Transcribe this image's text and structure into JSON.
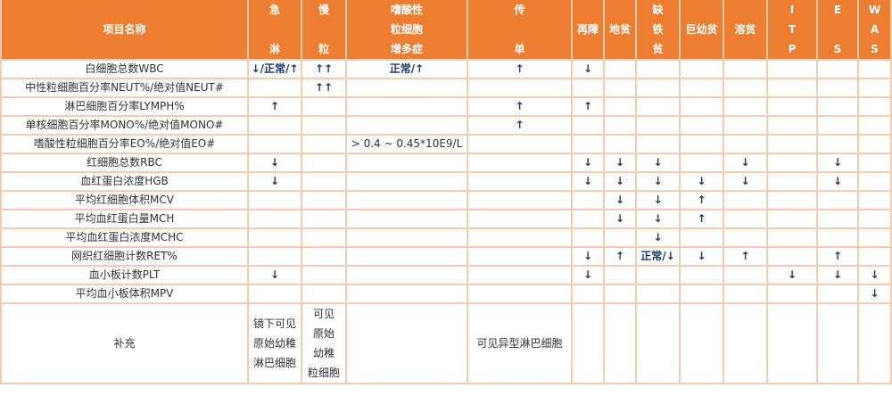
{
  "colors": {
    "header_bg": "#ed7d31",
    "border": "#f8cbad",
    "header_text": "#ffffff",
    "arrow": "#1f3864"
  },
  "headers": [
    "项目名称",
    "急\n\n淋",
    "慢\n\n粒",
    "嗜酸性\n粒细胞\n增多症",
    "传\n\n单",
    "再障",
    "地贫",
    "缺\n铁\n贫",
    "巨幼贫",
    "溶贫",
    "I\nT\nP",
    "E\n\nS",
    "W\nA\nS"
  ],
  "rows": [
    [
      "白细胞总数WBC",
      "↓/正常/↑",
      "↑↑",
      "正常/↑",
      "↑",
      "↓",
      "",
      "",
      "",
      "",
      "",
      "",
      ""
    ],
    [
      "中性粒细胞百分率NEUT%/绝对值NEUT#",
      "",
      "↑↑",
      "",
      "",
      "",
      "",
      "",
      "",
      "",
      "",
      "",
      ""
    ],
    [
      "淋巴细胞百分率LYMPH%",
      "↑",
      "",
      "",
      "↑",
      "↑",
      "",
      "",
      "",
      "",
      "",
      "",
      ""
    ],
    [
      "单核细胞百分率MONO%/绝对值MONO#",
      "",
      "",
      "",
      "↑",
      "",
      "",
      "",
      "",
      "",
      "",
      "",
      ""
    ],
    [
      "嗜酸性粒细胞百分率EO%/绝对值EO#",
      "",
      "",
      "> 0.4 ~ 0.45*10E9/L",
      "",
      "",
      "",
      "",
      "",
      "",
      "",
      "",
      ""
    ],
    [
      "红细胞总数RBC",
      "↓",
      "",
      "",
      "",
      "↓",
      "↓",
      "↓",
      "",
      "↓",
      "",
      "↓",
      ""
    ],
    [
      "血红蛋白浓度HGB",
      "↓",
      "",
      "",
      "",
      "↓",
      "↓",
      "↓",
      "↓",
      "↓",
      "",
      "↓",
      ""
    ],
    [
      "平均红细胞体积MCV",
      "",
      "",
      "",
      "",
      "",
      "↓",
      "↓",
      "↑",
      "",
      "",
      "",
      ""
    ],
    [
      "平均血红蛋白量MCH",
      "",
      "",
      "",
      "",
      "",
      "↓",
      "↓",
      "↑",
      "",
      "",
      "",
      ""
    ],
    [
      "平均血红蛋白浓度MCHC",
      "",
      "",
      "",
      "",
      "",
      "",
      "↓",
      "",
      "",
      "",
      "",
      ""
    ],
    [
      "网织红细胞计数RET%",
      "",
      "",
      "",
      "",
      "↓",
      "↑",
      "正常/↓",
      "↓",
      "↑",
      "",
      "↑",
      ""
    ],
    [
      "血小板计数PLT",
      "↓",
      "",
      "",
      "",
      "↓",
      "",
      "",
      "",
      "",
      "↓",
      "↓",
      "↓"
    ],
    [
      "平均血小板体积MPV",
      "",
      "",
      "",
      "",
      "",
      "",
      "",
      "",
      "",
      "",
      "",
      "↓"
    ]
  ],
  "supplement": [
    "补充",
    "镜下可见\n原始幼稚\n淋巴细胞",
    "可见\n原始\n幼稚\n粒细胞",
    "",
    "可见异型淋巴细胞",
    "",
    "",
    "",
    "",
    "",
    "",
    "",
    ""
  ]
}
